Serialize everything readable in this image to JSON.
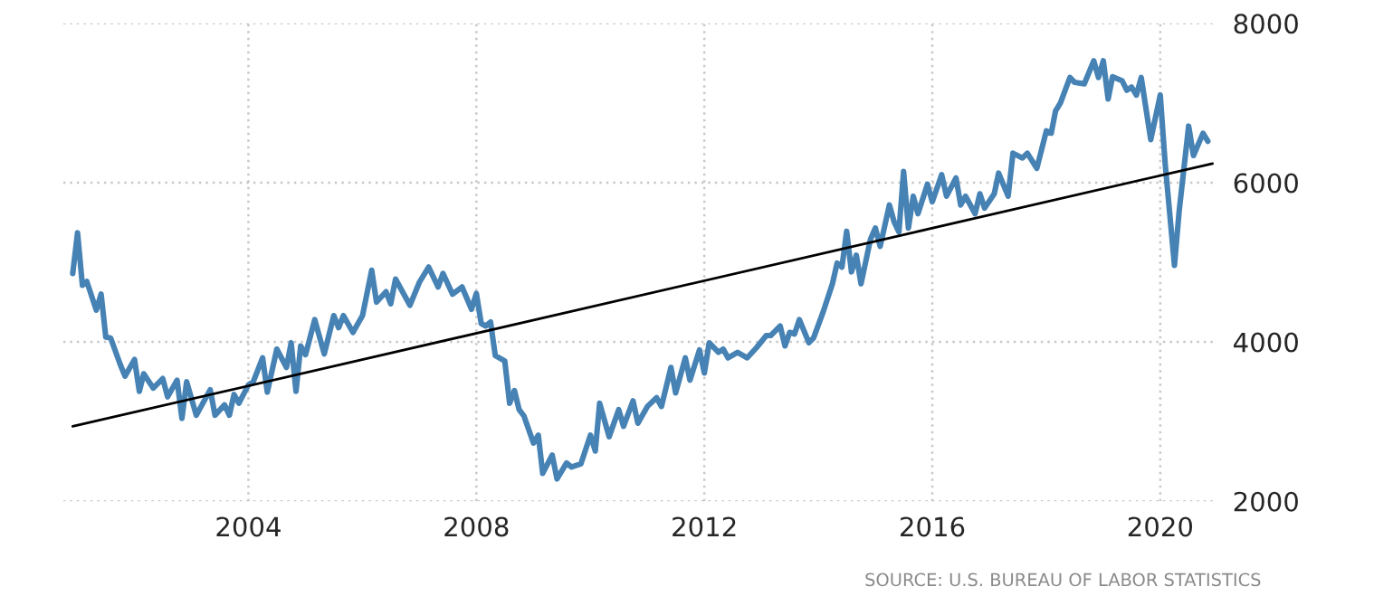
{
  "chart_data": {
    "type": "line",
    "annotations": [
      "SOURCE: U.S. BUREAU OF LABOR STATISTICS"
    ],
    "series": [
      {
        "color": "#4682b4",
        "x": [
          "2000-12",
          "2001-01",
          "2001-02",
          "2001-03",
          "2001-05",
          "2001-06",
          "2001-07",
          "2001-08",
          "2001-10",
          "2001-11",
          "2002-01",
          "2002-02",
          "2002-03",
          "2002-05",
          "2002-07",
          "2002-08",
          "2002-10",
          "2002-11",
          "2002-12",
          "2003-02",
          "2003-05",
          "2003-06",
          "2003-08",
          "2003-09",
          "2003-10",
          "2003-11",
          "2004-01",
          "2004-02",
          "2004-04",
          "2004-05",
          "2004-07",
          "2004-09",
          "2004-10",
          "2004-11",
          "2004-12",
          "2005-01",
          "2005-03",
          "2005-05",
          "2005-07",
          "2005-08",
          "2005-09",
          "2005-11",
          "2006-01",
          "2006-03",
          "2006-04",
          "2006-06",
          "2006-07",
          "2006-08",
          "2006-11",
          "2007-01",
          "2007-03",
          "2007-05",
          "2007-06",
          "2007-08",
          "2007-10",
          "2007-12",
          "2008-01",
          "2008-02",
          "2008-03",
          "2008-04",
          "2008-05",
          "2008-07",
          "2008-08",
          "2008-09",
          "2008-10",
          "2008-11",
          "2009-01",
          "2009-02",
          "2009-03",
          "2009-05",
          "2009-06",
          "2009-08",
          "2009-09",
          "2009-11",
          "2010-01",
          "2010-02",
          "2010-03",
          "2010-05",
          "2010-07",
          "2010-08",
          "2010-10",
          "2010-11",
          "2011-01",
          "2011-03",
          "2011-04",
          "2011-06",
          "2011-07",
          "2011-09",
          "2011-10",
          "2011-12",
          "2012-01",
          "2012-02",
          "2012-04",
          "2012-05",
          "2012-06",
          "2012-08",
          "2012-10",
          "2012-12",
          "2013-02",
          "2013-03",
          "2013-05",
          "2013-06",
          "2013-07",
          "2013-08",
          "2013-09",
          "2013-11",
          "2013-12",
          "2014-02",
          "2014-04",
          "2014-05",
          "2014-06",
          "2014-07",
          "2014-08",
          "2014-09",
          "2014-10",
          "2014-12",
          "2015-01",
          "2015-02",
          "2015-04",
          "2015-05",
          "2015-06",
          "2015-07",
          "2015-08",
          "2015-09",
          "2015-10",
          "2015-12",
          "2016-01",
          "2016-03",
          "2016-04",
          "2016-06",
          "2016-07",
          "2016-08",
          "2016-10",
          "2016-11",
          "2016-12",
          "2017-02",
          "2017-03",
          "2017-05",
          "2017-06",
          "2017-08",
          "2017-09",
          "2017-11",
          "2018-01",
          "2018-02",
          "2018-03",
          "2018-04",
          "2018-06",
          "2018-07",
          "2018-09",
          "2018-11",
          "2018-12",
          "2019-01",
          "2019-02",
          "2019-03",
          "2019-05",
          "2019-06",
          "2019-07",
          "2019-08",
          "2019-09",
          "2019-11",
          "2020-01",
          "2020-02",
          "2020-04",
          "2020-05",
          "2020-07",
          "2020-08",
          "2020-10",
          "2020-11"
        ],
        "values": [
          4860,
          5370,
          4710,
          4760,
          4400,
          4600,
          4060,
          4050,
          3720,
          3570,
          3780,
          3380,
          3600,
          3420,
          3540,
          3310,
          3520,
          3040,
          3500,
          3080,
          3400,
          3080,
          3210,
          3080,
          3340,
          3230,
          3460,
          3500,
          3800,
          3370,
          3910,
          3680,
          3990,
          3380,
          3950,
          3840,
          4280,
          3850,
          4330,
          4180,
          4330,
          4120,
          4330,
          4900,
          4500,
          4630,
          4480,
          4790,
          4460,
          4750,
          4940,
          4690,
          4860,
          4600,
          4690,
          4410,
          4610,
          4230,
          4200,
          4250,
          3830,
          3760,
          3230,
          3390,
          3150,
          3070,
          2730,
          2830,
          2350,
          2580,
          2280,
          2480,
          2430,
          2470,
          2830,
          2630,
          3230,
          2810,
          3150,
          2940,
          3260,
          2980,
          3190,
          3300,
          3190,
          3680,
          3360,
          3800,
          3520,
          3900,
          3610,
          3990,
          3870,
          3910,
          3800,
          3870,
          3800,
          3930,
          4080,
          4080,
          4200,
          3950,
          4120,
          4100,
          4280,
          3990,
          4050,
          4380,
          4730,
          4990,
          4940,
          5390,
          4880,
          5090,
          4730,
          5290,
          5430,
          5200,
          5720,
          5510,
          5380,
          6140,
          5430,
          5830,
          5610,
          5980,
          5760,
          6100,
          5830,
          6060,
          5720,
          5830,
          5610,
          5860,
          5680,
          5860,
          6120,
          5830,
          6370,
          6310,
          6370,
          6180,
          6650,
          6620,
          6900,
          7000,
          7320,
          7260,
          7240,
          7530,
          7320,
          7530,
          7050,
          7330,
          7280,
          7160,
          7200,
          7100,
          7320,
          6540,
          7100,
          6250,
          4960,
          5640,
          6710,
          6340,
          6620,
          6520
        ]
      },
      {
        "type": "line",
        "color": "#000000",
        "x": [
          "2000-12",
          "2020-12"
        ],
        "values": [
          2940,
          6240
        ]
      }
    ],
    "xlim": [
      "2000-10",
      "2021-01"
    ],
    "xticks": [
      "2004",
      "2008",
      "2012",
      "2016",
      "2020"
    ],
    "ylim": [
      2000,
      8000
    ],
    "yticks": [
      2000,
      4000,
      6000,
      8000
    ],
    "grid": true,
    "legend": false
  }
}
